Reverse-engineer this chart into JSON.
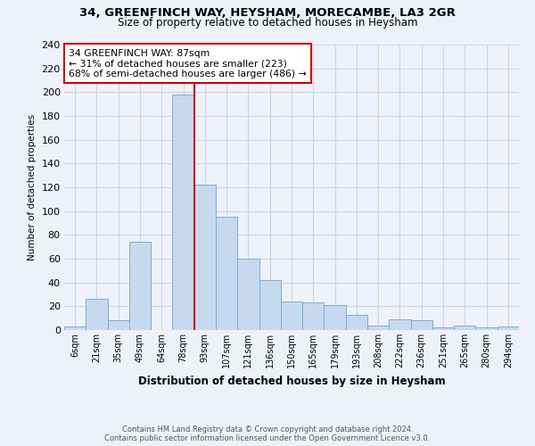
{
  "title_line1": "34, GREENFINCH WAY, HEYSHAM, MORECAMBE, LA3 2GR",
  "title_line2": "Size of property relative to detached houses in Heysham",
  "xlabel": "Distribution of detached houses by size in Heysham",
  "ylabel": "Number of detached properties",
  "bin_labels": [
    "6sqm",
    "21sqm",
    "35sqm",
    "49sqm",
    "64sqm",
    "78sqm",
    "93sqm",
    "107sqm",
    "121sqm",
    "136sqm",
    "150sqm",
    "165sqm",
    "179sqm",
    "193sqm",
    "208sqm",
    "222sqm",
    "236sqm",
    "251sqm",
    "265sqm",
    "280sqm",
    "294sqm"
  ],
  "bar_values": [
    3,
    26,
    8,
    74,
    0,
    198,
    122,
    95,
    60,
    42,
    24,
    23,
    21,
    13,
    4,
    9,
    8,
    2,
    4,
    2,
    3
  ],
  "bar_color": "#c6d9ee",
  "bar_edge_color": "#7aafd4",
  "grid_color": "#c8d4e4",
  "vline_x_index": 5.5,
  "vline_color": "#cc0000",
  "annotation_title": "34 GREENFINCH WAY: 87sqm",
  "annotation_line2": "← 31% of detached houses are smaller (223)",
  "annotation_line3": "68% of semi-detached houses are larger (486) →",
  "annotation_box_color": "#cc0000",
  "ylim": [
    0,
    240
  ],
  "yticks": [
    0,
    20,
    40,
    60,
    80,
    100,
    120,
    140,
    160,
    180,
    200,
    220,
    240
  ],
  "footer_line1": "Contains HM Land Registry data © Crown copyright and database right 2024.",
  "footer_line2": "Contains public sector information licensed under the Open Government Licence v3.0.",
  "bg_color": "#eef2f8"
}
